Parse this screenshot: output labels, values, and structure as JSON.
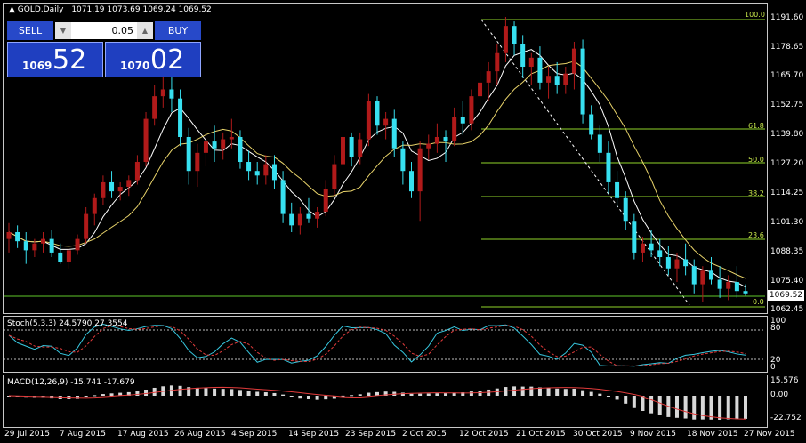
{
  "chart_header": {
    "title": "GOLD,Daily",
    "ohlc": "1071.19 1073.69 1069.24 1069.52",
    "triangle_icon": "triangle-up-icon"
  },
  "trade_panel": {
    "sell_label": "SELL",
    "buy_label": "BUY",
    "lot_value": "0.05",
    "bid_small": "1069",
    "bid_big": "52",
    "ask_small": "1070",
    "ask_big": "02",
    "button_color": "#2749c9"
  },
  "current_price": "1069.52",
  "price_axis": [
    "1191.60",
    "1178.65",
    "1165.70",
    "1152.75",
    "1139.80",
    "1127.20",
    "1114.25",
    "1101.30",
    "1088.35",
    "1075.40",
    "1062.45"
  ],
  "fibonacci": {
    "levels": [
      "100.0",
      "61.8",
      "50.0",
      "38.2",
      "23.6",
      "0.0"
    ],
    "color": "#8fd32a"
  },
  "stochastic": {
    "title": "Stoch(5,3,3) 24.5790 27.3554",
    "axis": [
      "100",
      "80",
      "20",
      "0"
    ]
  },
  "macd": {
    "title": "MACD(12,26,9) -15.741 -17.679",
    "axis": [
      "15.576",
      "0.00",
      "-22.752"
    ]
  },
  "date_axis": [
    "29 Jul 2015",
    "7 Aug 2015",
    "17 Aug 2015",
    "26 Aug 2015",
    "4 Sep 2015",
    "14 Sep 2015",
    "23 Sep 2015",
    "2 Oct 2015",
    "12 Oct 2015",
    "21 Oct 2015",
    "30 Oct 2015",
    "9 Nov 2015",
    "18 Nov 2015",
    "27 Nov 2015"
  ],
  "chart_data": {
    "type": "candlestick",
    "symbol": "GOLD",
    "timeframe": "Daily",
    "colors": {
      "bull": "#b11a1a",
      "bear": "#37e0f0",
      "ma_fast": "#ffffff",
      "ma_slow": "#e8d36a"
    },
    "ohlc": [
      [
        1094,
        1101,
        1088,
        1097
      ],
      [
        1097,
        1100,
        1090,
        1093
      ],
      [
        1093,
        1097,
        1083,
        1089
      ],
      [
        1089,
        1094,
        1086,
        1092
      ],
      [
        1092,
        1097,
        1088,
        1094
      ],
      [
        1094,
        1098,
        1086,
        1088
      ],
      [
        1088,
        1092,
        1083,
        1084
      ],
      [
        1084,
        1090,
        1081,
        1089
      ],
      [
        1089,
        1096,
        1087,
        1094
      ],
      [
        1094,
        1108,
        1092,
        1105
      ],
      [
        1105,
        1114,
        1100,
        1112
      ],
      [
        1112,
        1122,
        1109,
        1119
      ],
      [
        1119,
        1124,
        1112,
        1115
      ],
      [
        1115,
        1119,
        1111,
        1117
      ],
      [
        1117,
        1122,
        1113,
        1120
      ],
      [
        1120,
        1131,
        1118,
        1128
      ],
      [
        1128,
        1150,
        1126,
        1147
      ],
      [
        1147,
        1162,
        1144,
        1157
      ],
      [
        1157,
        1168,
        1152,
        1160
      ],
      [
        1160,
        1170,
        1150,
        1156
      ],
      [
        1156,
        1160,
        1135,
        1139
      ],
      [
        1139,
        1143,
        1118,
        1124
      ],
      [
        1124,
        1136,
        1117,
        1132
      ],
      [
        1132,
        1141,
        1126,
        1137
      ],
      [
        1137,
        1144,
        1128,
        1134
      ],
      [
        1134,
        1141,
        1129,
        1138
      ],
      [
        1138,
        1147,
        1134,
        1139
      ],
      [
        1139,
        1142,
        1125,
        1128
      ],
      [
        1128,
        1133,
        1120,
        1124
      ],
      [
        1124,
        1128,
        1118,
        1122
      ],
      [
        1122,
        1131,
        1118,
        1127
      ],
      [
        1127,
        1131,
        1116,
        1120
      ],
      [
        1120,
        1124,
        1101,
        1105
      ],
      [
        1105,
        1110,
        1097,
        1100
      ],
      [
        1100,
        1108,
        1096,
        1105
      ],
      [
        1105,
        1112,
        1101,
        1103
      ],
      [
        1103,
        1108,
        1099,
        1106
      ],
      [
        1106,
        1120,
        1104,
        1116
      ],
      [
        1116,
        1131,
        1113,
        1127
      ],
      [
        1127,
        1142,
        1124,
        1139
      ],
      [
        1139,
        1141,
        1126,
        1130
      ],
      [
        1130,
        1141,
        1127,
        1138
      ],
      [
        1138,
        1158,
        1135,
        1155
      ],
      [
        1155,
        1157,
        1140,
        1144
      ],
      [
        1144,
        1150,
        1138,
        1147
      ],
      [
        1147,
        1151,
        1130,
        1134
      ],
      [
        1134,
        1137,
        1118,
        1124
      ],
      [
        1124,
        1128,
        1112,
        1115
      ],
      [
        1115,
        1137,
        1102,
        1134
      ],
      [
        1134,
        1140,
        1129,
        1136
      ],
      [
        1136,
        1145,
        1132,
        1139
      ],
      [
        1139,
        1142,
        1128,
        1137
      ],
      [
        1137,
        1152,
        1135,
        1148
      ],
      [
        1148,
        1155,
        1140,
        1145
      ],
      [
        1145,
        1160,
        1142,
        1157
      ],
      [
        1157,
        1168,
        1152,
        1163
      ],
      [
        1163,
        1172,
        1155,
        1168
      ],
      [
        1168,
        1180,
        1162,
        1176
      ],
      [
        1176,
        1192,
        1172,
        1188
      ],
      [
        1188,
        1190,
        1175,
        1180
      ],
      [
        1180,
        1184,
        1165,
        1170
      ],
      [
        1170,
        1176,
        1162,
        1174
      ],
      [
        1174,
        1179,
        1160,
        1163
      ],
      [
        1163,
        1170,
        1156,
        1166
      ],
      [
        1166,
        1172,
        1158,
        1162
      ],
      [
        1162,
        1170,
        1158,
        1167
      ],
      [
        1167,
        1181,
        1160,
        1178
      ],
      [
        1178,
        1182,
        1145,
        1149
      ],
      [
        1149,
        1153,
        1138,
        1140
      ],
      [
        1140,
        1144,
        1128,
        1132
      ],
      [
        1132,
        1137,
        1114,
        1119
      ],
      [
        1119,
        1124,
        1108,
        1112
      ],
      [
        1112,
        1115,
        1098,
        1102
      ],
      [
        1102,
        1105,
        1085,
        1088
      ],
      [
        1088,
        1095,
        1084,
        1092
      ],
      [
        1092,
        1098,
        1086,
        1089
      ],
      [
        1089,
        1094,
        1082,
        1086
      ],
      [
        1086,
        1091,
        1078,
        1081
      ],
      [
        1081,
        1088,
        1075,
        1085
      ],
      [
        1085,
        1092,
        1078,
        1082
      ],
      [
        1082,
        1085,
        1070,
        1074
      ],
      [
        1074,
        1082,
        1066,
        1080
      ],
      [
        1080,
        1086,
        1074,
        1076
      ],
      [
        1076,
        1082,
        1068,
        1072
      ],
      [
        1072,
        1078,
        1067,
        1075
      ],
      [
        1075,
        1082,
        1068,
        1071
      ],
      [
        1071,
        1074,
        1069,
        1070
      ]
    ]
  }
}
